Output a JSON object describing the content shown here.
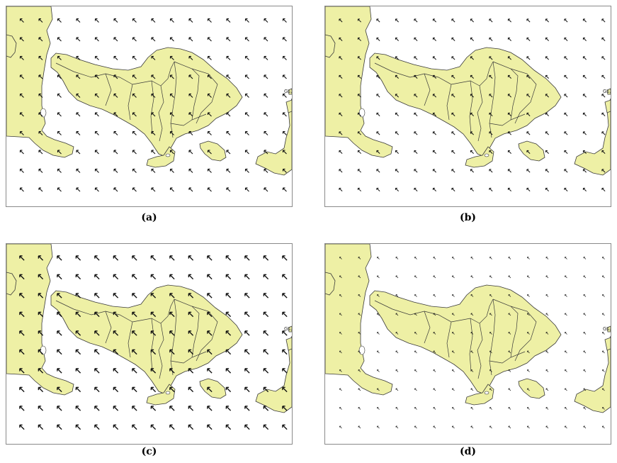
{
  "figure": {
    "panels": [
      {
        "id": "a",
        "caption": "(a)",
        "arrow_size": 1.0
      },
      {
        "id": "b",
        "caption": "(b)",
        "arrow_size": 0.85
      },
      {
        "id": "c",
        "caption": "(c)",
        "arrow_size": 1.25
      },
      {
        "id": "d",
        "caption": "(d)",
        "arrow_size": 0.6
      }
    ],
    "land_color": "#eef0a5",
    "coast_color": "#3a3a3a",
    "arrow_color": "#111111",
    "island_label": "Gs."
  }
}
